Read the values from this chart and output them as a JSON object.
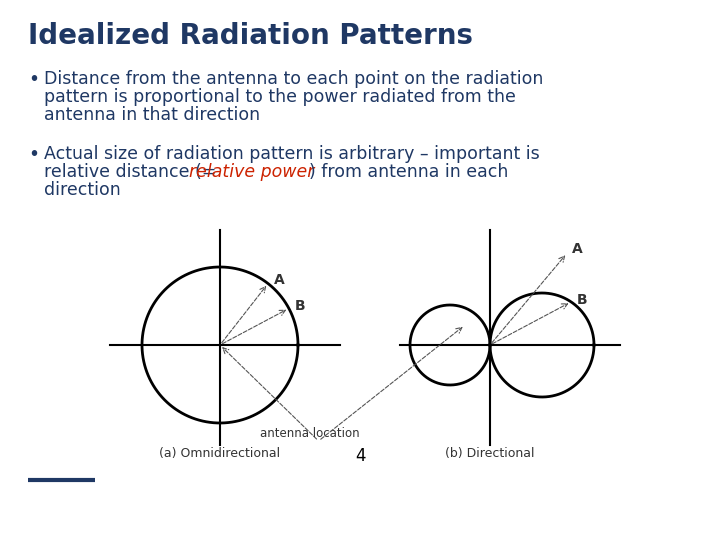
{
  "title": "Idealized Radiation Patterns",
  "title_color": "#1F3864",
  "title_fontsize": 20,
  "bg_color": "#FFFFFF",
  "bullet1_line1": "Distance from the antenna to each point on the radiation",
  "bullet1_line2": "pattern is proportional to the power radiated from the",
  "bullet1_line3": "antenna in that direction",
  "bullet2_line1": "Actual size of radiation pattern is arbitrary – important is",
  "bullet2_line2a": "relative distance (= ",
  "bullet2_line2b": "relative power",
  "bullet2_line2c": ") from antenna in each",
  "bullet2_line3": "direction",
  "text_color": "#1F3864",
  "highlight_color": "#CC2200",
  "text_fontsize": 12.5,
  "label_A": "A",
  "label_B": "B",
  "antenna_label": "antenna location",
  "caption_omni": "(a) Omnidirectional",
  "caption_dir": "(b) Directional",
  "page_number": "4",
  "underline_color": "#1F3864",
  "diagram_text_color": "#333333",
  "arrow_color": "#555555"
}
